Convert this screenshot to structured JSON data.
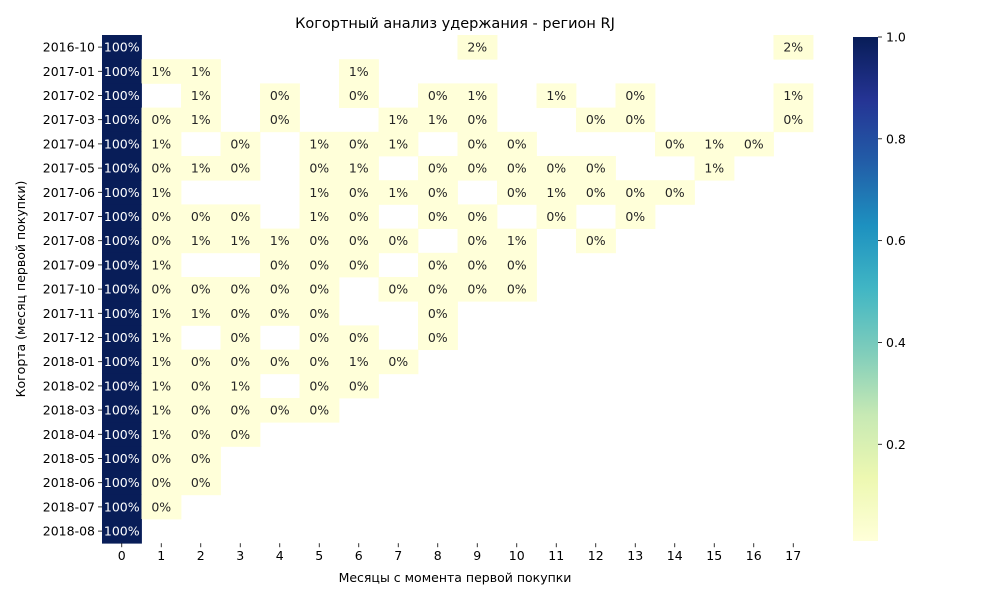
{
  "chart_data": {
    "type": "heatmap",
    "title": "Когортный анализ удержания - регион RJ",
    "xlabel": "Месяцы с момента первой покупки",
    "ylabel": "Когорта (месяц первой покупки)",
    "x_labels": [
      "0",
      "1",
      "2",
      "3",
      "4",
      "5",
      "6",
      "7",
      "8",
      "9",
      "10",
      "11",
      "12",
      "13",
      "14",
      "15",
      "16",
      "17"
    ],
    "y_labels": [
      "2016-10",
      "2017-01",
      "2017-02",
      "2017-03",
      "2017-04",
      "2017-05",
      "2017-06",
      "2017-07",
      "2017-08",
      "2017-09",
      "2017-10",
      "2017-11",
      "2017-12",
      "2018-01",
      "2018-02",
      "2018-03",
      "2018-04",
      "2018-05",
      "2018-06",
      "2018-07",
      "2018-08"
    ],
    "value_format": "percent",
    "values": [
      [
        1.0,
        null,
        null,
        null,
        null,
        null,
        null,
        null,
        null,
        0.02,
        null,
        null,
        null,
        null,
        null,
        null,
        null,
        0.02
      ],
      [
        1.0,
        0.01,
        0.01,
        null,
        null,
        null,
        0.01,
        null,
        null,
        null,
        null,
        null,
        null,
        null,
        null,
        null,
        null,
        null
      ],
      [
        1.0,
        null,
        0.01,
        null,
        0.0,
        null,
        0.0,
        null,
        0.0,
        0.01,
        null,
        0.01,
        null,
        0.0,
        null,
        null,
        null,
        0.01
      ],
      [
        1.0,
        0.0,
        0.01,
        null,
        0.0,
        null,
        null,
        0.01,
        0.01,
        0.0,
        null,
        null,
        0.0,
        0.0,
        null,
        null,
        null,
        0.0
      ],
      [
        1.0,
        0.01,
        null,
        0.0,
        null,
        0.01,
        0.0,
        0.01,
        null,
        0.0,
        0.0,
        null,
        null,
        null,
        0.0,
        0.01,
        0.0,
        null
      ],
      [
        1.0,
        0.0,
        0.01,
        0.0,
        null,
        0.0,
        0.01,
        null,
        0.0,
        0.0,
        0.0,
        0.0,
        0.0,
        null,
        null,
        0.01,
        null,
        null
      ],
      [
        1.0,
        0.01,
        null,
        null,
        null,
        0.01,
        0.0,
        0.01,
        0.0,
        null,
        0.0,
        0.01,
        0.0,
        0.0,
        0.0,
        null,
        null,
        null
      ],
      [
        1.0,
        0.0,
        0.0,
        0.0,
        null,
        0.01,
        0.0,
        null,
        0.0,
        0.0,
        null,
        0.0,
        null,
        0.0,
        null,
        null,
        null,
        null
      ],
      [
        1.0,
        0.0,
        0.01,
        0.01,
        0.01,
        0.0,
        0.0,
        0.0,
        null,
        0.0,
        0.01,
        null,
        0.0,
        null,
        null,
        null,
        null,
        null
      ],
      [
        1.0,
        0.01,
        null,
        null,
        0.0,
        0.0,
        0.0,
        null,
        0.0,
        0.0,
        0.0,
        null,
        null,
        null,
        null,
        null,
        null,
        null
      ],
      [
        1.0,
        0.0,
        0.0,
        0.0,
        0.0,
        0.0,
        null,
        0.0,
        0.0,
        0.0,
        0.0,
        null,
        null,
        null,
        null,
        null,
        null,
        null
      ],
      [
        1.0,
        0.01,
        0.01,
        0.0,
        0.0,
        0.0,
        null,
        null,
        0.0,
        null,
        null,
        null,
        null,
        null,
        null,
        null,
        null,
        null
      ],
      [
        1.0,
        0.01,
        null,
        0.0,
        null,
        0.0,
        0.0,
        null,
        0.0,
        null,
        null,
        null,
        null,
        null,
        null,
        null,
        null,
        null
      ],
      [
        1.0,
        0.01,
        0.0,
        0.0,
        0.0,
        0.0,
        0.01,
        0.0,
        null,
        null,
        null,
        null,
        null,
        null,
        null,
        null,
        null,
        null
      ],
      [
        1.0,
        0.01,
        0.0,
        0.01,
        null,
        0.0,
        0.0,
        null,
        null,
        null,
        null,
        null,
        null,
        null,
        null,
        null,
        null,
        null
      ],
      [
        1.0,
        0.01,
        0.0,
        0.0,
        0.0,
        0.0,
        null,
        null,
        null,
        null,
        null,
        null,
        null,
        null,
        null,
        null,
        null,
        null
      ],
      [
        1.0,
        0.01,
        0.0,
        0.0,
        null,
        null,
        null,
        null,
        null,
        null,
        null,
        null,
        null,
        null,
        null,
        null,
        null,
        null
      ],
      [
        1.0,
        0.0,
        0.0,
        null,
        null,
        null,
        null,
        null,
        null,
        null,
        null,
        null,
        null,
        null,
        null,
        null,
        null,
        null
      ],
      [
        1.0,
        0.0,
        0.0,
        null,
        null,
        null,
        null,
        null,
        null,
        null,
        null,
        null,
        null,
        null,
        null,
        null,
        null,
        null
      ],
      [
        1.0,
        0.0,
        null,
        null,
        null,
        null,
        null,
        null,
        null,
        null,
        null,
        null,
        null,
        null,
        null,
        null,
        null,
        null
      ],
      [
        1.0,
        null,
        null,
        null,
        null,
        null,
        null,
        null,
        null,
        null,
        null,
        null,
        null,
        null,
        null,
        null,
        null,
        null
      ]
    ],
    "colorbar": {
      "colormap": "YlGnBu",
      "range": [
        0.01,
        1.0
      ],
      "ticks": [
        0.2,
        0.4,
        0.6,
        0.8,
        1.0
      ],
      "tick_labels": [
        "0.2",
        "0.4",
        "0.6",
        "0.8",
        "1.0"
      ]
    },
    "grid": false
  }
}
